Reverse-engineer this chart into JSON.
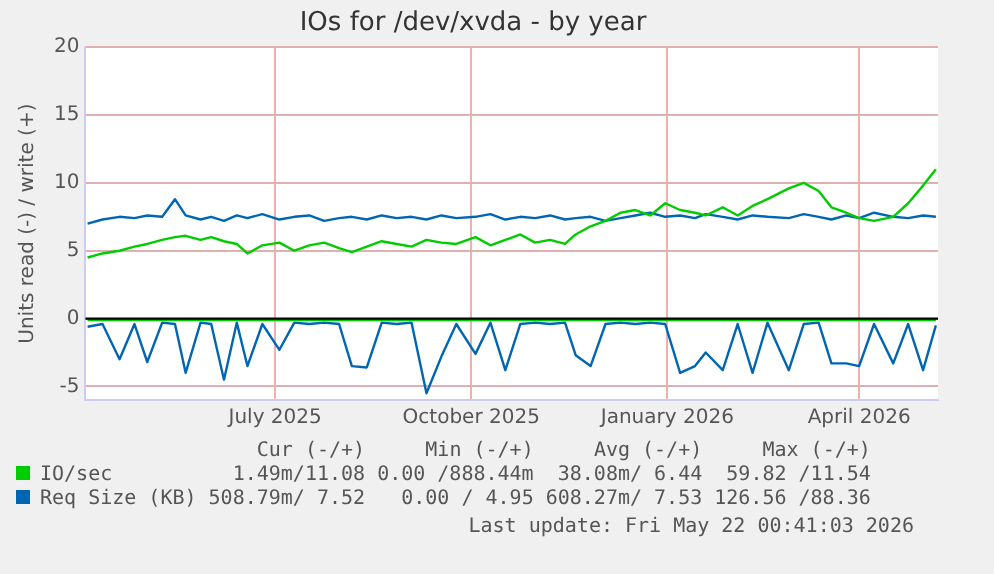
{
  "chart_data": {
    "type": "line",
    "title": "IOs for /dev/xvda - by year",
    "ylabel": "Units read (-) / write (+)",
    "x": [
      "2025-04-18",
      "2025-04-25",
      "2025-05-03",
      "2025-05-10",
      "2025-05-16",
      "2025-05-23",
      "2025-05-29",
      "2025-06-03",
      "2025-06-10",
      "2025-06-15",
      "2025-06-21",
      "2025-06-27",
      "2025-07-02",
      "2025-07-09",
      "2025-07-17",
      "2025-07-24",
      "2025-07-31",
      "2025-08-07",
      "2025-08-14",
      "2025-08-20",
      "2025-08-27",
      "2025-09-03",
      "2025-09-10",
      "2025-09-17",
      "2025-09-24",
      "2025-10-01",
      "2025-10-08",
      "2025-10-17",
      "2025-10-24",
      "2025-10-31",
      "2025-11-07",
      "2025-11-14",
      "2025-11-21",
      "2025-11-28",
      "2025-12-03",
      "2025-12-10",
      "2025-12-17",
      "2025-12-24",
      "2025-12-31",
      "2026-01-07",
      "2026-01-14",
      "2026-01-21",
      "2026-01-28",
      "2026-02-02",
      "2026-02-10",
      "2026-02-17",
      "2026-02-24",
      "2026-03-03",
      "2026-03-13",
      "2026-03-20",
      "2026-03-27",
      "2026-04-02",
      "2026-04-09",
      "2026-04-15",
      "2026-04-22",
      "2026-05-01",
      "2026-05-08",
      "2026-05-15",
      "2026-05-21"
    ],
    "series": [
      {
        "color": "#00cc00",
        "values": [
          -0.1,
          -0.1,
          -0.1,
          -0.1,
          -0.1,
          -0.1,
          -0.1,
          -0.1,
          -0.1,
          -0.1,
          -0.1,
          -0.1,
          -0.1,
          -0.1,
          -0.1,
          -0.1,
          -0.1,
          -0.1,
          -0.1,
          -0.1,
          -0.1,
          -0.1,
          -0.1,
          -0.1,
          -0.1,
          -0.1,
          -0.1,
          -0.1,
          -0.1,
          -0.1,
          -0.1,
          -0.1,
          -0.1,
          -0.1,
          -0.1,
          -0.1,
          -0.1,
          -0.1,
          -0.1,
          -0.1,
          -0.1,
          -0.1,
          -0.1,
          -0.1,
          -0.1,
          -0.1,
          -0.1,
          -0.1,
          -0.1,
          -0.1,
          -0.1,
          -0.1,
          -0.1,
          -0.1,
          -0.1,
          -0.1,
          -0.1,
          -0.1,
          -0.1
        ]
      },
      {
        "name": "IO/sec",
        "color": "#00cc00",
        "values": [
          4.5,
          4.8,
          5.0,
          5.3,
          5.5,
          5.8,
          6.0,
          6.1,
          5.8,
          6.0,
          5.7,
          5.5,
          4.8,
          5.4,
          5.6,
          5.0,
          5.4,
          5.6,
          5.2,
          4.9,
          5.3,
          5.7,
          5.5,
          5.3,
          5.8,
          5.6,
          5.5,
          6.0,
          5.4,
          5.8,
          6.2,
          5.6,
          5.8,
          5.5,
          6.2,
          6.8,
          7.2,
          7.8,
          8.0,
          7.6,
          8.5,
          8.0,
          7.8,
          7.6,
          8.2,
          7.6,
          8.3,
          8.8,
          9.6,
          10.0,
          9.4,
          8.2,
          7.8,
          7.4,
          7.2,
          7.5,
          8.5,
          9.8,
          11.0
        ]
      },
      {
        "color": "#0066b3",
        "values": [
          -0.6,
          -0.4,
          -3.0,
          -0.4,
          -3.2,
          -0.3,
          -0.4,
          -4.0,
          -0.3,
          -0.4,
          -4.5,
          -0.3,
          -3.5,
          -0.4,
          -2.3,
          -0.3,
          -0.4,
          -0.3,
          -0.4,
          -3.5,
          -3.6,
          -0.3,
          -0.4,
          -0.3,
          -5.5,
          -2.8,
          -0.4,
          -2.6,
          -0.3,
          -3.8,
          -0.4,
          -0.3,
          -0.4,
          -0.3,
          -2.7,
          -3.5,
          -0.4,
          -0.3,
          -0.4,
          -0.3,
          -0.4,
          -4.0,
          -3.5,
          -2.5,
          -3.8,
          -0.4,
          -4.0,
          -0.3,
          -3.8,
          -0.4,
          -0.3,
          -3.3,
          -3.3,
          -3.5,
          -0.4,
          -3.3,
          -0.4,
          -3.8,
          -0.5
        ]
      },
      {
        "name": "Req Size (KB)",
        "color": "#0066b3",
        "values": [
          7.0,
          7.3,
          7.5,
          7.4,
          7.6,
          7.5,
          8.8,
          7.6,
          7.3,
          7.5,
          7.2,
          7.6,
          7.4,
          7.7,
          7.3,
          7.5,
          7.6,
          7.2,
          7.4,
          7.5,
          7.3,
          7.6,
          7.4,
          7.5,
          7.3,
          7.6,
          7.4,
          7.5,
          7.7,
          7.3,
          7.5,
          7.4,
          7.6,
          7.3,
          7.4,
          7.5,
          7.2,
          7.4,
          7.6,
          7.8,
          7.5,
          7.6,
          7.4,
          7.7,
          7.5,
          7.3,
          7.6,
          7.5,
          7.4,
          7.7,
          7.5,
          7.3,
          7.6,
          7.4,
          7.8,
          7.5,
          7.4,
          7.6,
          7.5
        ]
      }
    ],
    "xlim": [
      "2025-04-17",
      "2026-05-22"
    ],
    "xticks": [
      {
        "value": "2025-07-15",
        "label": "July 2025"
      },
      {
        "value": "2025-10-15",
        "label": "October 2025"
      },
      {
        "value": "2026-01-15",
        "label": "January 2026"
      },
      {
        "value": "2026-04-15",
        "label": "April 2026"
      }
    ],
    "ylim": [
      -6,
      20
    ],
    "yticks": [
      -5,
      0,
      5,
      10,
      15,
      20
    ],
    "ref_lines": [
      {
        "axis": "y",
        "value": 0,
        "color": "#000000"
      }
    ],
    "grid": true,
    "legend": "bottom",
    "marker": "none",
    "line_style": "solid",
    "annotations": [
      "Cur (-/+)",
      "Min (-/+)",
      "Avg (-/+)",
      "Max (-/+)",
      "1.49m/11.08",
      "0.00 /888.44m",
      "38.08m/ 6.44",
      "59.82 /11.54",
      "508.79m/ 7.52",
      "0.00 / 4.95",
      "608.27m/ 7.53",
      "126.56 /88.36",
      "Last update: Fri May 22 00:41:03 2026"
    ]
  }
}
